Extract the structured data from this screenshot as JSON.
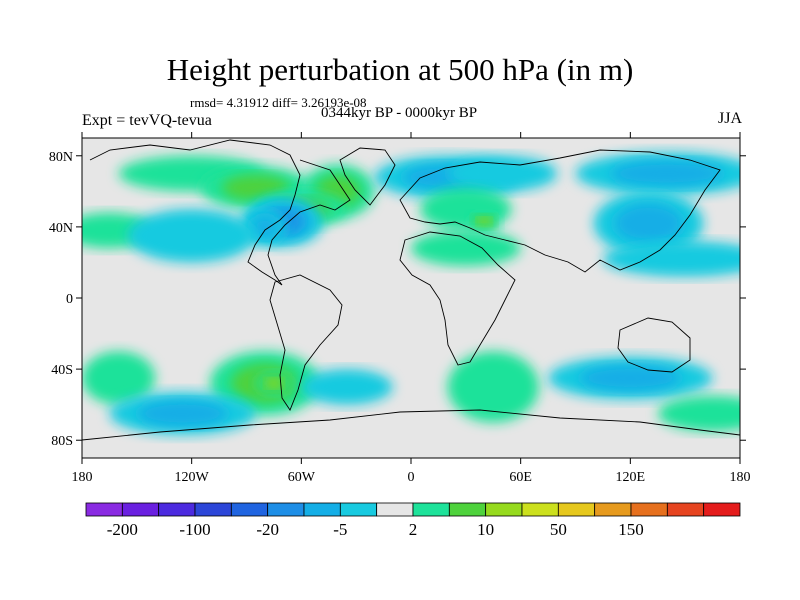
{
  "figure": {
    "title": "Height perturbation at 500 hPa (in m)",
    "stats": "rmsd= 4.31912 diff= 3.26193e-08",
    "experiment": "Expt = tevVQ-tevua",
    "period": "0344kyr BP - 0000kyr BP",
    "season": "JJA"
  },
  "axes": {
    "lat_ticks": [
      {
        "value": 80,
        "label": "80N"
      },
      {
        "value": 40,
        "label": "40N"
      },
      {
        "value": 0,
        "label": "0"
      },
      {
        "value": -40,
        "label": "40S"
      },
      {
        "value": -80,
        "label": "80S"
      }
    ],
    "lon_ticks": [
      {
        "value": -180,
        "label": "180"
      },
      {
        "value": -120,
        "label": "120W"
      },
      {
        "value": -60,
        "label": "60W"
      },
      {
        "value": 0,
        "label": "0"
      },
      {
        "value": 60,
        "label": "60E"
      },
      {
        "value": 120,
        "label": "120E"
      },
      {
        "value": 180,
        "label": "180"
      }
    ],
    "lon_range": [
      -180,
      180
    ],
    "lat_range": [
      -90,
      90
    ]
  },
  "colorbar": {
    "colors": [
      "#8a2be2",
      "#6a20e0",
      "#4c2adf",
      "#2c46d8",
      "#2064e0",
      "#1e8ee6",
      "#14aee6",
      "#18cae0",
      "#e6e6e6",
      "#1ee29a",
      "#4ed23c",
      "#96da1e",
      "#cce01e",
      "#e6c81e",
      "#e69a1e",
      "#e6701e",
      "#e64420",
      "#e41c1c"
    ],
    "labels": [
      {
        "boundary": 1,
        "text": "-200"
      },
      {
        "boundary": 3,
        "text": "-100"
      },
      {
        "boundary": 5,
        "text": "-20"
      },
      {
        "boundary": 7,
        "text": "-5"
      },
      {
        "boundary": 9,
        "text": "2"
      },
      {
        "boundary": 11,
        "text": "10"
      },
      {
        "boundary": 13,
        "text": "50"
      },
      {
        "boundary": 15,
        "text": "150"
      }
    ]
  },
  "anomalies": [
    {
      "lon": -120,
      "lat": 70,
      "level": 1,
      "rx": 40,
      "ry": 10
    },
    {
      "lon": -85,
      "lat": 62,
      "level": 2,
      "rx": 30,
      "ry": 12
    },
    {
      "lon": -40,
      "lat": 60,
      "level": 2,
      "rx": 20,
      "ry": 15
    },
    {
      "lon": -60,
      "lat": 50,
      "level": 2,
      "rx": 25,
      "ry": 10
    },
    {
      "lon": -70,
      "lat": 43,
      "level": -3,
      "rx": 22,
      "ry": 14
    },
    {
      "lon": -80,
      "lat": 40,
      "level": -2,
      "rx": 12,
      "ry": 10
    },
    {
      "lon": 20,
      "lat": 68,
      "level": -2,
      "rx": 40,
      "ry": 12
    },
    {
      "lon": 50,
      "lat": 70,
      "level": -1,
      "rx": 30,
      "ry": 10
    },
    {
      "lon": 140,
      "lat": 70,
      "level": -2,
      "rx": 50,
      "ry": 12
    },
    {
      "lon": 30,
      "lat": 50,
      "level": 1,
      "rx": 25,
      "ry": 12
    },
    {
      "lon": 40,
      "lat": 43,
      "level": 3,
      "rx": 8,
      "ry": 5
    },
    {
      "lon": -165,
      "lat": 38,
      "level": 1,
      "rx": 25,
      "ry": 10
    },
    {
      "lon": -120,
      "lat": 35,
      "level": -1,
      "rx": 35,
      "ry": 15
    },
    {
      "lon": 30,
      "lat": 28,
      "level": 1,
      "rx": 30,
      "ry": 10
    },
    {
      "lon": 130,
      "lat": 42,
      "level": -2,
      "rx": 30,
      "ry": 18
    },
    {
      "lon": 150,
      "lat": 22,
      "level": -1,
      "rx": 45,
      "ry": 10
    },
    {
      "lon": -80,
      "lat": -48,
      "level": 2,
      "rx": 30,
      "ry": 18
    },
    {
      "lon": -75,
      "lat": -48,
      "level": 3,
      "rx": 10,
      "ry": 6
    },
    {
      "lon": -160,
      "lat": -45,
      "level": 1,
      "rx": 20,
      "ry": 15
    },
    {
      "lon": -125,
      "lat": -65,
      "level": -2,
      "rx": 40,
      "ry": 12
    },
    {
      "lon": -35,
      "lat": -50,
      "level": -1,
      "rx": 25,
      "ry": 10
    },
    {
      "lon": 45,
      "lat": -50,
      "level": 1,
      "rx": 25,
      "ry": 20
    },
    {
      "lon": 120,
      "lat": -45,
      "level": -2,
      "rx": 45,
      "ry": 12
    },
    {
      "lon": 165,
      "lat": -65,
      "level": 1,
      "rx": 30,
      "ry": 10
    }
  ]
}
